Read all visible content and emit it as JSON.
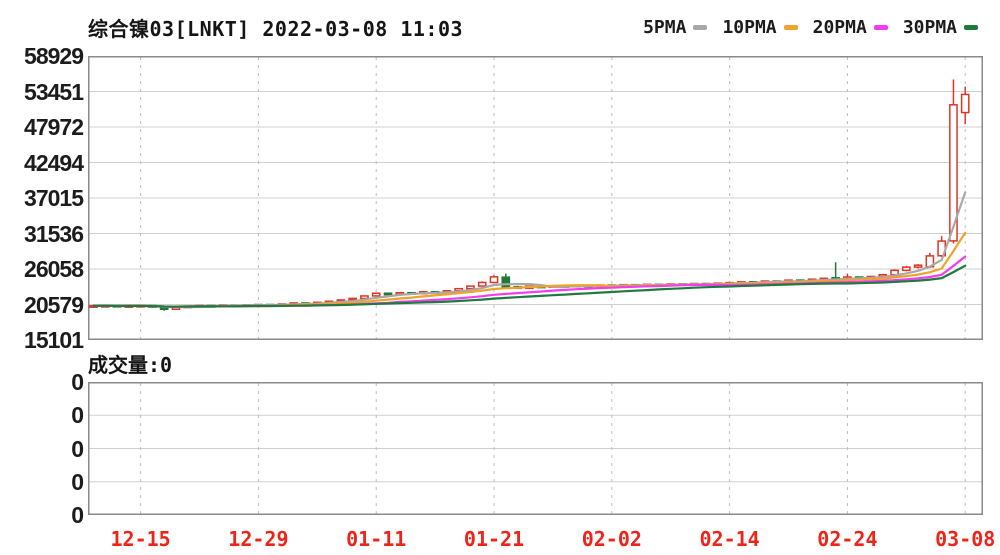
{
  "header": {
    "title": "综合镍03[LNKT] 2022-03-08 11:03",
    "legend": [
      {
        "label": "5PMA",
        "color": "#a8a8a8"
      },
      {
        "label": "10PMA",
        "color": "#efa32a"
      },
      {
        "label": "20PMA",
        "color": "#f23cf2"
      },
      {
        "label": "30PMA",
        "color": "#1f7a3d"
      }
    ]
  },
  "volume": {
    "label": "成交量:0",
    "current": 0,
    "y_ticks": [
      "0",
      "0",
      "0",
      "0",
      "0"
    ]
  },
  "chart_data": {
    "type": "candlestick",
    "title": "综合镍03[LNKT] 2022-03-08 11:03",
    "ylim": [
      15101,
      58929
    ],
    "y_ticks": [
      58929,
      53451,
      47972,
      42494,
      37015,
      31536,
      26058,
      20579,
      15101
    ],
    "x_ticks": [
      {
        "label": "12-15",
        "index": 4
      },
      {
        "label": "12-29",
        "index": 14
      },
      {
        "label": "01-11",
        "index": 24
      },
      {
        "label": "01-21",
        "index": 34
      },
      {
        "label": "02-02",
        "index": 44
      },
      {
        "label": "02-14",
        "index": 54
      },
      {
        "label": "02-24",
        "index": 64
      },
      {
        "label": "03-08",
        "index": 74
      }
    ],
    "ma_periods": [
      5,
      10,
      20,
      30
    ],
    "up_color": "#de3526",
    "down_color": "#1e7a38",
    "axis_label_color": "#ee2419",
    "grid_color": "#d0d0d0",
    "border_color": "#8a8a8a",
    "candles_ohlc": [
      [
        20300,
        20450,
        20200,
        20380
      ],
      [
        20380,
        20480,
        20280,
        20420
      ],
      [
        20420,
        20450,
        20180,
        20250
      ],
      [
        20250,
        20420,
        20200,
        20380
      ],
      [
        20380,
        20480,
        20300,
        20420
      ],
      [
        20420,
        20450,
        20100,
        20180
      ],
      [
        20180,
        20250,
        19600,
        19850
      ],
      [
        19850,
        20250,
        19800,
        20180
      ],
      [
        20180,
        20380,
        20100,
        20320
      ],
      [
        20320,
        20480,
        20250,
        20420
      ],
      [
        20420,
        20450,
        20250,
        20350
      ],
      [
        20350,
        20520,
        20300,
        20470
      ],
      [
        20470,
        20500,
        20300,
        20400
      ],
      [
        20400,
        20580,
        20350,
        20530
      ],
      [
        20530,
        20650,
        20450,
        20580
      ],
      [
        20580,
        20620,
        20380,
        20480
      ],
      [
        20480,
        20720,
        20420,
        20660
      ],
      [
        20660,
        20880,
        20600,
        20820
      ],
      [
        20820,
        20860,
        20620,
        20720
      ],
      [
        20720,
        20980,
        20680,
        20920
      ],
      [
        20920,
        21150,
        20860,
        21080
      ],
      [
        21080,
        21350,
        21020,
        21280
      ],
      [
        21280,
        21600,
        21220,
        21520
      ],
      [
        21520,
        21980,
        21480,
        21900
      ],
      [
        21900,
        22420,
        21850,
        22320
      ],
      [
        22320,
        22380,
        22050,
        22140
      ],
      [
        22140,
        22480,
        22100,
        22400
      ],
      [
        22400,
        22450,
        22150,
        22240
      ],
      [
        22240,
        22620,
        22200,
        22540
      ],
      [
        22540,
        22600,
        22350,
        22440
      ],
      [
        22440,
        22780,
        22400,
        22700
      ],
      [
        22700,
        23100,
        22650,
        23020
      ],
      [
        23020,
        23500,
        22980,
        23420
      ],
      [
        23420,
        24150,
        23380,
        23980
      ],
      [
        23980,
        25100,
        23900,
        24850
      ],
      [
        24800,
        25350,
        23150,
        23300
      ],
      [
        23300,
        23450,
        22950,
        23080
      ],
      [
        23080,
        23500,
        23020,
        23400
      ],
      [
        23400,
        23480,
        23150,
        23250
      ],
      [
        23250,
        23580,
        23200,
        23480
      ],
      [
        23480,
        23550,
        23250,
        23350
      ],
      [
        23350,
        23620,
        23300,
        23540
      ],
      [
        23540,
        23600,
        23300,
        23400
      ],
      [
        23400,
        23680,
        23350,
        23580
      ],
      [
        23580,
        23650,
        23380,
        23480
      ],
      [
        23480,
        23720,
        23430,
        23640
      ],
      [
        23640,
        23700,
        23440,
        23540
      ],
      [
        23540,
        23780,
        23500,
        23700
      ],
      [
        23700,
        23760,
        23500,
        23600
      ],
      [
        23600,
        23840,
        23560,
        23760
      ],
      [
        23760,
        23820,
        23560,
        23660
      ],
      [
        23660,
        23900,
        23620,
        23820
      ],
      [
        23820,
        23880,
        23620,
        23720
      ],
      [
        23720,
        23960,
        23680,
        23880
      ],
      [
        23880,
        24020,
        23820,
        23960
      ],
      [
        23960,
        24150,
        23900,
        24080
      ],
      [
        24080,
        24180,
        23920,
        24000
      ],
      [
        24000,
        24280,
        23960,
        24200
      ],
      [
        24200,
        24260,
        24000,
        24100
      ],
      [
        24100,
        24420,
        24060,
        24340
      ],
      [
        24340,
        24400,
        24140,
        24240
      ],
      [
        24240,
        24560,
        24200,
        24480
      ],
      [
        24480,
        24700,
        24420,
        24620
      ],
      [
        24700,
        27100,
        24380,
        24520
      ],
      [
        24520,
        25300,
        24420,
        24820
      ],
      [
        24820,
        24900,
        24480,
        24600
      ],
      [
        24600,
        24980,
        24550,
        24900
      ],
      [
        24900,
        25300,
        24850,
        25180
      ],
      [
        25180,
        26000,
        25100,
        25850
      ],
      [
        25850,
        26550,
        25700,
        26350
      ],
      [
        26350,
        26800,
        26150,
        26650
      ],
      [
        26400,
        28550,
        26200,
        28080
      ],
      [
        28100,
        31130,
        27900,
        30370
      ],
      [
        30400,
        55300,
        30000,
        51400
      ],
      [
        50200,
        54200,
        48400,
        53000
      ]
    ],
    "volume_values_all_zero": true
  }
}
